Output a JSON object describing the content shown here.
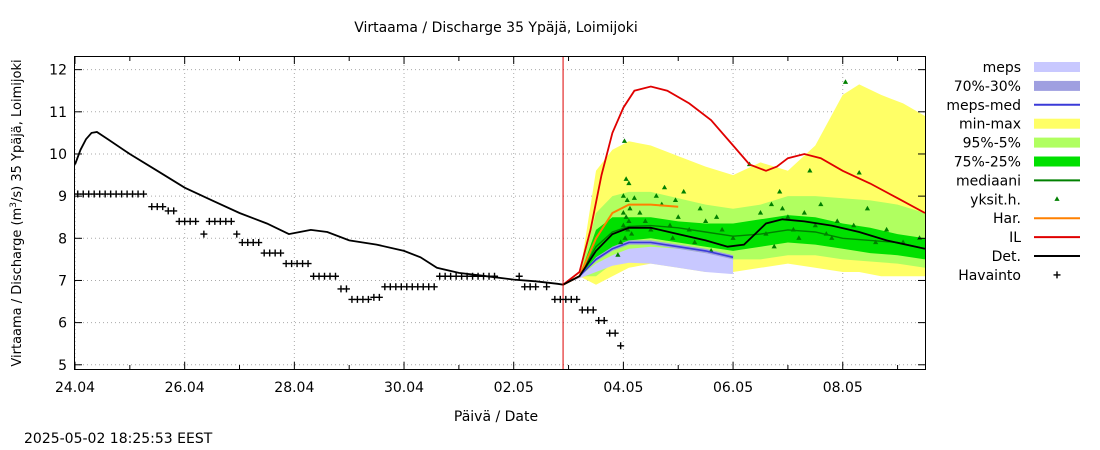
{
  "chart_data": {
    "type": "line",
    "title": "Virtaama / Discharge  35 Ypäjä, Loimijoki",
    "xlabel": "Päivä / Date",
    "ylabel_prefix": "Virtaama / Discharge (m",
    "ylabel_sup": "3",
    "ylabel_suffix": "/s)  35 Ypäjä, Loimijoki",
    "timestamp": "2025-05-02 18:25:53 EEST",
    "x_unit": "days since 24.04 00:00",
    "xlim": [
      0,
      15.5
    ],
    "ylim": [
      4.9,
      12.3
    ],
    "x_ticks": [
      {
        "x": 0,
        "label": "24.04"
      },
      {
        "x": 2,
        "label": "26.04"
      },
      {
        "x": 4,
        "label": "28.04"
      },
      {
        "x": 6,
        "label": "30.04"
      },
      {
        "x": 8,
        "label": "02.05"
      },
      {
        "x": 10,
        "label": "04.05"
      },
      {
        "x": 12,
        "label": "06.05"
      },
      {
        "x": 14,
        "label": "08.05"
      }
    ],
    "y_ticks": [
      5,
      6,
      7,
      8,
      9,
      10,
      11,
      12
    ],
    "forecast_start": 8.9,
    "colors": {
      "meps": "#c8c8ff",
      "p70_30": "#9f9fe0",
      "meps_med": "#3a3ad8",
      "minmax": "#ffff66",
      "p95_5": "#b0ff60",
      "p75_25": "#00e000",
      "median": "#008000",
      "yksit": "#008000",
      "har": "#ff8000",
      "il": "#e00000",
      "det": "#000000",
      "obs": "#000000",
      "vline": "#dd0000"
    },
    "legend": [
      {
        "key": "meps",
        "label": "meps",
        "style": "band"
      },
      {
        "key": "p70_30",
        "label": "70%-30%",
        "style": "band"
      },
      {
        "key": "meps_med",
        "label": "meps-med",
        "style": "line"
      },
      {
        "key": "minmax",
        "label": "min-max",
        "style": "band"
      },
      {
        "key": "p95_5",
        "label": "95%-5%",
        "style": "band"
      },
      {
        "key": "p75_25",
        "label": "75%-25%",
        "style": "band"
      },
      {
        "key": "median",
        "label": "mediaani",
        "style": "line"
      },
      {
        "key": "yksit",
        "label": "yksit.h.",
        "style": "tri"
      },
      {
        "key": "har",
        "label": "Har.",
        "style": "line"
      },
      {
        "key": "il",
        "label": "IL",
        "style": "line"
      },
      {
        "key": "det",
        "label": "Det.",
        "style": "line"
      },
      {
        "key": "obs",
        "label": "Havainto",
        "style": "plus"
      }
    ],
    "series": {
      "det": [
        [
          0,
          9.75
        ],
        [
          0.1,
          10.1
        ],
        [
          0.2,
          10.35
        ],
        [
          0.3,
          10.5
        ],
        [
          0.4,
          10.52
        ],
        [
          0.6,
          10.35
        ],
        [
          1.0,
          10.0
        ],
        [
          1.5,
          9.6
        ],
        [
          2.0,
          9.2
        ],
        [
          2.5,
          8.9
        ],
        [
          3.0,
          8.6
        ],
        [
          3.5,
          8.35
        ],
        [
          3.9,
          8.1
        ],
        [
          4.1,
          8.15
        ],
        [
          4.3,
          8.2
        ],
        [
          4.6,
          8.15
        ],
        [
          5.0,
          7.95
        ],
        [
          5.5,
          7.85
        ],
        [
          6.0,
          7.7
        ],
        [
          6.3,
          7.55
        ],
        [
          6.6,
          7.3
        ],
        [
          7.0,
          7.18
        ],
        [
          7.5,
          7.1
        ],
        [
          8.0,
          7.02
        ],
        [
          8.4,
          6.98
        ],
        [
          8.8,
          6.92
        ],
        [
          8.9,
          6.9
        ],
        [
          9.2,
          7.1
        ],
        [
          9.5,
          7.7
        ],
        [
          9.8,
          8.1
        ],
        [
          10.1,
          8.25
        ],
        [
          10.5,
          8.25
        ],
        [
          11.0,
          8.1
        ],
        [
          11.5,
          7.95
        ],
        [
          11.9,
          7.8
        ],
        [
          12.2,
          7.85
        ],
        [
          12.4,
          8.1
        ],
        [
          12.6,
          8.35
        ],
        [
          12.9,
          8.45
        ],
        [
          13.3,
          8.4
        ],
        [
          13.8,
          8.3
        ],
        [
          14.3,
          8.15
        ],
        [
          14.8,
          7.95
        ],
        [
          15.5,
          7.75
        ]
      ],
      "median": [
        [
          8.9,
          6.9
        ],
        [
          9.2,
          7.1
        ],
        [
          9.5,
          7.8
        ],
        [
          9.8,
          8.15
        ],
        [
          10.1,
          8.28
        ],
        [
          10.5,
          8.3
        ],
        [
          11.0,
          8.25
        ],
        [
          11.5,
          8.15
        ],
        [
          12.0,
          8.05
        ],
        [
          12.5,
          8.1
        ],
        [
          13.0,
          8.2
        ],
        [
          13.5,
          8.15
        ],
        [
          14.0,
          8.0
        ],
        [
          14.5,
          7.95
        ],
        [
          15.0,
          7.9
        ],
        [
          15.5,
          7.75
        ]
      ],
      "meps_med": [
        [
          8.9,
          6.9
        ],
        [
          9.2,
          7.1
        ],
        [
          9.5,
          7.5
        ],
        [
          9.8,
          7.75
        ],
        [
          10.1,
          7.9
        ],
        [
          10.5,
          7.9
        ],
        [
          11.0,
          7.8
        ],
        [
          11.5,
          7.7
        ],
        [
          12.0,
          7.55
        ]
      ],
      "har": [
        [
          8.9,
          6.9
        ],
        [
          9.2,
          7.1
        ],
        [
          9.5,
          8.0
        ],
        [
          9.8,
          8.6
        ],
        [
          10.1,
          8.8
        ],
        [
          10.5,
          8.8
        ],
        [
          11.0,
          8.75
        ]
      ],
      "il": [
        [
          8.9,
          6.9
        ],
        [
          9.0,
          7.0
        ],
        [
          9.2,
          7.2
        ],
        [
          9.4,
          8.2
        ],
        [
          9.6,
          9.5
        ],
        [
          9.8,
          10.5
        ],
        [
          10.0,
          11.1
        ],
        [
          10.2,
          11.5
        ],
        [
          10.5,
          11.6
        ],
        [
          10.8,
          11.5
        ],
        [
          11.2,
          11.2
        ],
        [
          11.6,
          10.8
        ],
        [
          12.0,
          10.2
        ],
        [
          12.3,
          9.75
        ],
        [
          12.6,
          9.6
        ],
        [
          12.8,
          9.7
        ],
        [
          13.0,
          9.9
        ],
        [
          13.3,
          10.0
        ],
        [
          13.6,
          9.9
        ],
        [
          14.0,
          9.6
        ],
        [
          14.5,
          9.3
        ],
        [
          15.0,
          8.95
        ],
        [
          15.5,
          8.6
        ]
      ]
    },
    "bands": {
      "minmax": [
        [
          8.9,
          6.9,
          6.9
        ],
        [
          9.2,
          7.1,
          7.1
        ],
        [
          9.5,
          6.9,
          9.6
        ],
        [
          9.8,
          7.1,
          10.1
        ],
        [
          10.1,
          7.3,
          10.3
        ],
        [
          10.5,
          7.4,
          10.2
        ],
        [
          11.0,
          7.3,
          9.95
        ],
        [
          11.5,
          7.2,
          9.7
        ],
        [
          12.0,
          7.2,
          9.5
        ],
        [
          12.5,
          7.3,
          9.8
        ],
        [
          13.0,
          7.4,
          9.6
        ],
        [
          13.5,
          7.3,
          10.2
        ],
        [
          14.0,
          7.2,
          11.4
        ],
        [
          14.3,
          7.2,
          11.65
        ],
        [
          14.7,
          7.1,
          11.4
        ],
        [
          15.1,
          7.1,
          11.2
        ],
        [
          15.5,
          7.1,
          10.9
        ]
      ],
      "p95_5": [
        [
          8.9,
          6.9,
          6.9
        ],
        [
          9.2,
          7.1,
          7.1
        ],
        [
          9.5,
          7.1,
          8.6
        ],
        [
          9.8,
          7.4,
          9.0
        ],
        [
          10.1,
          7.6,
          9.1
        ],
        [
          10.5,
          7.7,
          9.1
        ],
        [
          11.0,
          7.6,
          8.95
        ],
        [
          11.5,
          7.55,
          8.8
        ],
        [
          12.0,
          7.5,
          8.7
        ],
        [
          12.5,
          7.5,
          8.8
        ],
        [
          13.0,
          7.6,
          9.0
        ],
        [
          13.5,
          7.6,
          9.0
        ],
        [
          14.0,
          7.5,
          8.95
        ],
        [
          14.5,
          7.45,
          8.9
        ],
        [
          15.0,
          7.4,
          8.8
        ],
        [
          15.5,
          7.3,
          8.6
        ]
      ],
      "p75_25": [
        [
          8.9,
          6.9,
          6.9
        ],
        [
          9.2,
          7.1,
          7.1
        ],
        [
          9.5,
          7.5,
          8.2
        ],
        [
          9.8,
          7.8,
          8.5
        ],
        [
          10.1,
          7.95,
          8.5
        ],
        [
          10.5,
          8.0,
          8.5
        ],
        [
          11.0,
          7.9,
          8.4
        ],
        [
          11.5,
          7.8,
          8.35
        ],
        [
          12.0,
          7.7,
          8.35
        ],
        [
          12.5,
          7.8,
          8.45
        ],
        [
          13.0,
          7.9,
          8.55
        ],
        [
          13.5,
          7.85,
          8.5
        ],
        [
          14.0,
          7.75,
          8.35
        ],
        [
          14.5,
          7.65,
          8.25
        ],
        [
          15.0,
          7.6,
          8.1
        ],
        [
          15.5,
          7.5,
          8.0
        ]
      ],
      "meps": [
        [
          8.9,
          6.9,
          6.9
        ],
        [
          9.2,
          7.05,
          7.1
        ],
        [
          9.5,
          7.2,
          7.4
        ],
        [
          9.8,
          7.35,
          7.6
        ],
        [
          10.1,
          7.42,
          7.75
        ],
        [
          10.5,
          7.4,
          7.8
        ],
        [
          11.0,
          7.3,
          7.75
        ],
        [
          11.5,
          7.2,
          7.65
        ],
        [
          12.0,
          7.15,
          7.55
        ]
      ],
      "p70_30": [
        [
          8.9,
          6.9,
          6.9
        ],
        [
          9.2,
          7.1,
          7.1
        ],
        [
          9.5,
          7.45,
          7.55
        ],
        [
          9.8,
          7.7,
          7.8
        ],
        [
          10.1,
          7.85,
          7.95
        ],
        [
          10.5,
          7.85,
          7.95
        ],
        [
          11.0,
          7.75,
          7.85
        ],
        [
          11.5,
          7.65,
          7.75
        ],
        [
          12.0,
          7.5,
          7.6
        ]
      ]
    },
    "yksit_points": [
      [
        10.02,
        10.3
      ],
      [
        10.05,
        9.4
      ],
      [
        10.1,
        9.3
      ],
      [
        10.0,
        9.0
      ],
      [
        10.07,
        8.9
      ],
      [
        10.12,
        8.7
      ],
      [
        10.0,
        8.6
      ],
      [
        10.05,
        8.5
      ],
      [
        10.1,
        8.4
      ],
      [
        10.0,
        8.3
      ],
      [
        10.08,
        8.2
      ],
      [
        10.15,
        8.1
      ],
      [
        10.03,
        8.0
      ],
      [
        9.95,
        7.9
      ],
      [
        9.9,
        7.6
      ],
      [
        10.2,
        8.95
      ],
      [
        10.3,
        8.6
      ],
      [
        10.4,
        8.4
      ],
      [
        10.5,
        8.2
      ],
      [
        10.6,
        9.0
      ],
      [
        10.7,
        8.8
      ],
      [
        10.75,
        9.2
      ],
      [
        10.85,
        8.3
      ],
      [
        10.9,
        8.0
      ],
      [
        10.95,
        8.9
      ],
      [
        11.0,
        8.5
      ],
      [
        11.1,
        9.1
      ],
      [
        11.2,
        8.2
      ],
      [
        11.3,
        7.9
      ],
      [
        11.4,
        8.7
      ],
      [
        11.5,
        8.4
      ],
      [
        11.6,
        7.7
      ],
      [
        11.7,
        8.5
      ],
      [
        11.8,
        8.2
      ],
      [
        12.0,
        8.0
      ],
      [
        12.3,
        9.75
      ],
      [
        12.5,
        8.6
      ],
      [
        12.6,
        8.1
      ],
      [
        12.7,
        8.8
      ],
      [
        12.75,
        7.8
      ],
      [
        12.85,
        9.1
      ],
      [
        12.9,
        8.7
      ],
      [
        13.0,
        8.5
      ],
      [
        13.1,
        8.2
      ],
      [
        13.2,
        8.0
      ],
      [
        13.3,
        8.6
      ],
      [
        13.4,
        9.6
      ],
      [
        13.5,
        8.3
      ],
      [
        13.6,
        8.8
      ],
      [
        13.7,
        8.1
      ],
      [
        13.8,
        8.0
      ],
      [
        13.9,
        8.4
      ],
      [
        14.05,
        11.7
      ],
      [
        14.2,
        8.3
      ],
      [
        14.3,
        9.55
      ],
      [
        14.45,
        8.7
      ],
      [
        14.6,
        7.9
      ],
      [
        14.8,
        8.2
      ],
      [
        15.1,
        7.9
      ],
      [
        15.4,
        8.0
      ]
    ],
    "observations": [
      [
        0.05,
        9.05
      ],
      [
        0.15,
        9.05
      ],
      [
        0.25,
        9.05
      ],
      [
        0.35,
        9.05
      ],
      [
        0.45,
        9.05
      ],
      [
        0.55,
        9.05
      ],
      [
        0.65,
        9.05
      ],
      [
        0.75,
        9.05
      ],
      [
        0.85,
        9.05
      ],
      [
        0.95,
        9.05
      ],
      [
        1.05,
        9.05
      ],
      [
        1.15,
        9.05
      ],
      [
        1.25,
        9.05
      ],
      [
        1.4,
        8.75
      ],
      [
        1.5,
        8.75
      ],
      [
        1.6,
        8.75
      ],
      [
        1.7,
        8.65
      ],
      [
        1.8,
        8.65
      ],
      [
        1.9,
        8.4
      ],
      [
        2.0,
        8.4
      ],
      [
        2.1,
        8.4
      ],
      [
        2.2,
        8.4
      ],
      [
        2.35,
        8.1
      ],
      [
        2.45,
        8.4
      ],
      [
        2.55,
        8.4
      ],
      [
        2.65,
        8.4
      ],
      [
        2.75,
        8.4
      ],
      [
        2.85,
        8.4
      ],
      [
        2.95,
        8.1
      ],
      [
        3.05,
        7.9
      ],
      [
        3.15,
        7.9
      ],
      [
        3.25,
        7.9
      ],
      [
        3.35,
        7.9
      ],
      [
        3.45,
        7.65
      ],
      [
        3.55,
        7.65
      ],
      [
        3.65,
        7.65
      ],
      [
        3.75,
        7.65
      ],
      [
        3.85,
        7.4
      ],
      [
        3.95,
        7.4
      ],
      [
        4.05,
        7.4
      ],
      [
        4.15,
        7.4
      ],
      [
        4.25,
        7.4
      ],
      [
        4.35,
        7.1
      ],
      [
        4.45,
        7.1
      ],
      [
        4.55,
        7.1
      ],
      [
        4.65,
        7.1
      ],
      [
        4.75,
        7.1
      ],
      [
        4.85,
        6.8
      ],
      [
        4.95,
        6.8
      ],
      [
        5.05,
        6.55
      ],
      [
        5.15,
        6.55
      ],
      [
        5.25,
        6.55
      ],
      [
        5.35,
        6.55
      ],
      [
        5.45,
        6.6
      ],
      [
        5.55,
        6.6
      ],
      [
        5.65,
        6.85
      ],
      [
        5.75,
        6.85
      ],
      [
        5.85,
        6.85
      ],
      [
        5.95,
        6.85
      ],
      [
        6.05,
        6.85
      ],
      [
        6.15,
        6.85
      ],
      [
        6.25,
        6.85
      ],
      [
        6.35,
        6.85
      ],
      [
        6.45,
        6.85
      ],
      [
        6.55,
        6.85
      ],
      [
        6.65,
        7.1
      ],
      [
        6.75,
        7.1
      ],
      [
        6.85,
        7.1
      ],
      [
        6.95,
        7.1
      ],
      [
        7.05,
        7.1
      ],
      [
        7.15,
        7.1
      ],
      [
        7.25,
        7.1
      ],
      [
        7.35,
        7.1
      ],
      [
        7.45,
        7.1
      ],
      [
        7.55,
        7.1
      ],
      [
        7.65,
        7.1
      ],
      [
        8.1,
        7.1
      ],
      [
        8.2,
        6.85
      ],
      [
        8.3,
        6.85
      ],
      [
        8.4,
        6.85
      ],
      [
        8.6,
        6.85
      ],
      [
        8.75,
        6.55
      ],
      [
        8.85,
        6.55
      ],
      [
        8.95,
        6.55
      ],
      [
        9.05,
        6.55
      ],
      [
        9.15,
        6.55
      ],
      [
        9.25,
        6.3
      ],
      [
        9.35,
        6.3
      ],
      [
        9.45,
        6.3
      ],
      [
        9.55,
        6.05
      ],
      [
        9.65,
        6.05
      ],
      [
        9.75,
        5.75
      ],
      [
        9.85,
        5.75
      ],
      [
        9.95,
        5.45
      ]
    ]
  }
}
